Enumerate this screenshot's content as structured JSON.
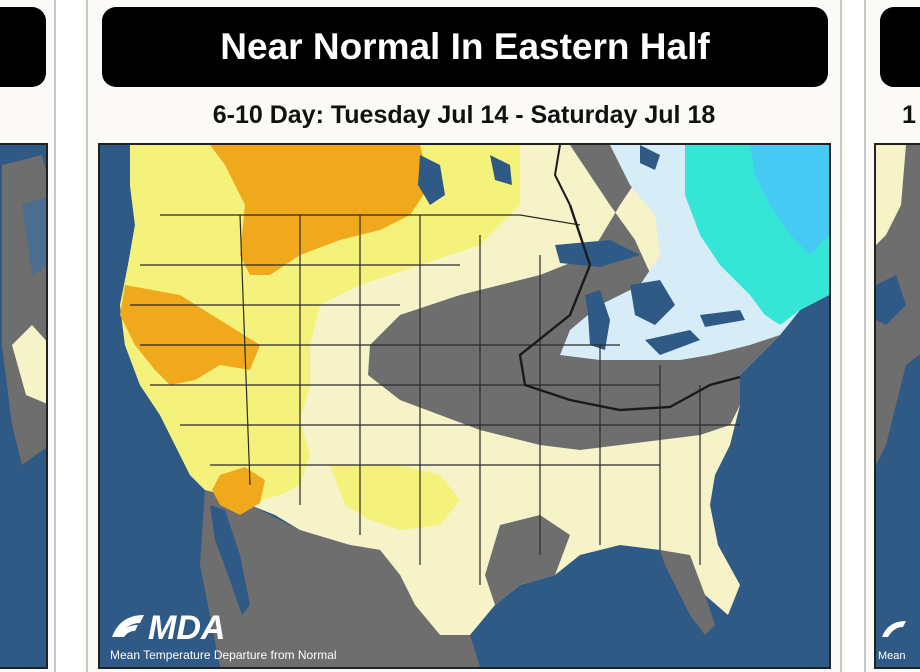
{
  "center_panel": {
    "title": "Near Normal In Eastern Half",
    "subtitle": "6-10 Day: Tuesday Jul 14 - Saturday Jul 18",
    "logo_text": "MDA",
    "caption": "Mean Temperature Departure from Normal"
  },
  "right_panel": {
    "subtitle_fragment": "1",
    "logo_fragment": "",
    "caption_fragment": "Mean"
  },
  "colors": {
    "ocean": "#2f5a86",
    "land_base": "#f6f3c9",
    "above_light": "#f4f27a",
    "above_mid": "#f0c419",
    "above_strong": "#f0a81c",
    "near_normal": "#6e6e6e",
    "below_light": "#d6ecf6",
    "below_mid": "#35e6d6",
    "below_strong": "#46c9f2",
    "lines": "#2a2a2a"
  }
}
